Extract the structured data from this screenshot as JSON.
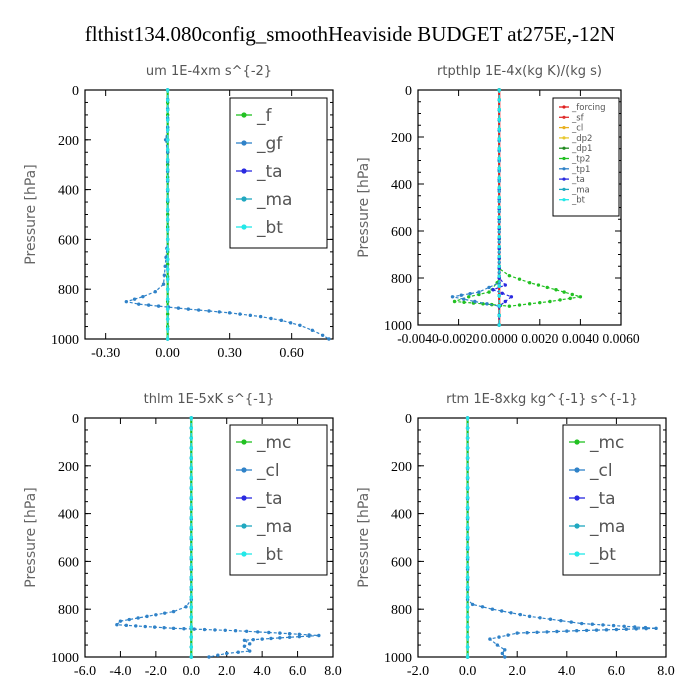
{
  "title": "flthist134.080config_smoothHeaviside  BUDGET at275E,-12N",
  "chart_data": [
    {
      "type": "line",
      "title": "um   1E-4xm s^{-2}",
      "ylabel": "Pressure [hPa]",
      "xlim": [
        -0.4,
        0.8
      ],
      "ylim": [
        1000,
        0
      ],
      "grid": false,
      "x_ticks": [
        "-0.30",
        "0.00",
        "0.30",
        "0.60"
      ],
      "x_tick_values": [
        -0.3,
        0,
        0.3,
        0.6
      ],
      "y_ticks": [
        "0",
        "200",
        "400",
        "600",
        "800",
        "1000"
      ],
      "y_tick_values": [
        0,
        200,
        400,
        600,
        800,
        1000
      ],
      "legend_position": "top-right",
      "series": [
        {
          "name": "_f",
          "color": "#22c122",
          "points": [
            [
              0,
              0
            ],
            [
              0,
              100
            ],
            [
              0,
              200
            ],
            [
              0,
              300
            ],
            [
              0,
              400
            ],
            [
              0,
              500
            ],
            [
              0,
              600
            ],
            [
              0,
              700
            ],
            [
              0,
              800
            ],
            [
              0,
              900
            ],
            [
              0,
              1000
            ]
          ]
        },
        {
          "name": "_gf",
          "color": "#2f82c8",
          "points": [
            [
              0,
              0
            ],
            [
              0,
              150
            ],
            [
              -0.01,
              200
            ],
            [
              0,
              250
            ],
            [
              0,
              600
            ],
            [
              -0.02,
              780
            ],
            [
              -0.06,
              810
            ],
            [
              -0.12,
              830
            ],
            [
              -0.2,
              850
            ],
            [
              -0.14,
              860
            ],
            [
              0.1,
              880
            ],
            [
              0.3,
              895
            ],
            [
              0.45,
              910
            ],
            [
              0.55,
              925
            ],
            [
              0.64,
              945
            ],
            [
              0.7,
              965
            ],
            [
              0.75,
              985
            ],
            [
              0.78,
              1000
            ]
          ]
        },
        {
          "name": "_ta",
          "color": "#2a2ae0",
          "points": [
            [
              0,
              0
            ],
            [
              0,
              800
            ],
            [
              0,
              1000
            ]
          ]
        },
        {
          "name": "_ma",
          "color": "#20a8c0",
          "points": [
            [
              0,
              0
            ],
            [
              0,
              1000
            ]
          ]
        },
        {
          "name": "_bt",
          "color": "#22e8e8",
          "points": [
            [
              0,
              0
            ],
            [
              0,
              1000
            ]
          ]
        }
      ]
    },
    {
      "type": "line",
      "title": "rtpthlp   1E-4x(kg K)/(kg s)",
      "ylabel": "Pressure [hPa]",
      "xlim": [
        -0.004,
        0.006
      ],
      "ylim": [
        1000,
        0
      ],
      "grid": false,
      "x_ticks": [
        "-0.0040",
        "-0.0020",
        "0.0000",
        "0.0020",
        "0.0040",
        "0.0060"
      ],
      "x_tick_values": [
        -0.004,
        -0.002,
        0,
        0.002,
        0.004,
        0.006
      ],
      "y_ticks": [
        "0",
        "200",
        "400",
        "600",
        "800",
        "1000"
      ],
      "y_tick_values": [
        0,
        200,
        400,
        600,
        800,
        1000
      ],
      "legend_position": "top-right",
      "series": [
        {
          "name": "_forcing",
          "color": "#e02020",
          "points": [
            [
              0,
              0
            ],
            [
              0,
              1000
            ]
          ]
        },
        {
          "name": "_sf",
          "color": "#e03030",
          "points": [
            [
              0,
              0
            ],
            [
              0,
              1000
            ]
          ]
        },
        {
          "name": "_cl",
          "color": "#e8b020",
          "points": [
            [
              0,
              0
            ],
            [
              0,
              1000
            ]
          ]
        },
        {
          "name": "_dp2",
          "color": "#e8c830",
          "points": [
            [
              0,
              0
            ],
            [
              0,
              1000
            ]
          ]
        },
        {
          "name": "_dp1",
          "color": "#208a20",
          "points": [
            [
              0,
              0
            ],
            [
              0,
              1000
            ]
          ]
        },
        {
          "name": "_tp2",
          "color": "#22c122",
          "points": [
            [
              0,
              0
            ],
            [
              0,
              760
            ],
            [
              0.0005,
              790
            ],
            [
              0.0015,
              820
            ],
            [
              0.0028,
              850
            ],
            [
              0.004,
              880
            ],
            [
              0.0025,
              900
            ],
            [
              0.0005,
              920
            ],
            [
              -0.0008,
              910
            ],
            [
              -0.0022,
              900
            ],
            [
              -0.0015,
              880
            ],
            [
              -0.0005,
              860
            ],
            [
              -0.0001,
              820
            ],
            [
              0,
              800
            ]
          ]
        },
        {
          "name": "_tp1",
          "color": "#2f82c8",
          "points": [
            [
              0,
              0
            ],
            [
              0,
              820
            ],
            [
              -0.001,
              860
            ],
            [
              -0.0023,
              880
            ],
            [
              -0.0012,
              900
            ],
            [
              0,
              920
            ],
            [
              0,
              1000
            ]
          ]
        },
        {
          "name": "_ta",
          "color": "#2a2ae0",
          "points": [
            [
              0,
              0
            ],
            [
              0,
              800
            ],
            [
              0.0003,
              830
            ],
            [
              -0.0003,
              850
            ],
            [
              0.0006,
              880
            ],
            [
              0.0003,
              900
            ],
            [
              0,
              920
            ],
            [
              0,
              1000
            ]
          ]
        },
        {
          "name": "_ma",
          "color": "#20a8c0",
          "points": [
            [
              0,
              0
            ],
            [
              0,
              1000
            ]
          ]
        },
        {
          "name": "_bt",
          "color": "#22e8e8",
          "points": [
            [
              0,
              0
            ],
            [
              0,
              1000
            ]
          ]
        }
      ]
    },
    {
      "type": "line",
      "title": "thlm   1E-5xK s^{-1}",
      "ylabel": "Pressure [hPa]",
      "xlim": [
        -6.0,
        8.0
      ],
      "ylim": [
        1000,
        0
      ],
      "grid": false,
      "x_ticks": [
        "-6.0",
        "-4.0",
        "-2.0",
        "0.0",
        "2.0",
        "4.0",
        "6.0",
        "8.0"
      ],
      "x_tick_values": [
        -6,
        -4,
        -2,
        0,
        2,
        4,
        6,
        8
      ],
      "y_ticks": [
        "0",
        "200",
        "400",
        "600",
        "800",
        "1000"
      ],
      "y_tick_values": [
        0,
        200,
        400,
        600,
        800,
        1000
      ],
      "legend_position": "top-right",
      "series": [
        {
          "name": "_mc",
          "color": "#22c122",
          "points": [
            [
              0,
              0
            ],
            [
              0,
              1000
            ]
          ]
        },
        {
          "name": "_cl",
          "color": "#2f82c8",
          "points": [
            [
              0,
              0
            ],
            [
              0,
              760
            ],
            [
              -0.3,
              790
            ],
            [
              -1.0,
              810
            ],
            [
              -2.5,
              830
            ],
            [
              -4.0,
              850
            ],
            [
              -4.2,
              865
            ],
            [
              -1.0,
              880
            ],
            [
              2.5,
              890
            ],
            [
              5.0,
              900
            ],
            [
              7.2,
              910
            ],
            [
              5.0,
              920
            ],
            [
              3.0,
              930
            ],
            [
              3.3,
              945
            ],
            [
              3.0,
              955
            ],
            [
              3.3,
              975
            ],
            [
              2.0,
              985
            ],
            [
              1.0,
              1000
            ]
          ]
        },
        {
          "name": "_ta",
          "color": "#2a2ae0",
          "points": [
            [
              0,
              0
            ],
            [
              0,
              1000
            ]
          ]
        },
        {
          "name": "_ma",
          "color": "#20a8c0",
          "points": [
            [
              0,
              0
            ],
            [
              0,
              1000
            ]
          ]
        },
        {
          "name": "_bt",
          "color": "#22e8e8",
          "points": [
            [
              0,
              0
            ],
            [
              0,
              1000
            ]
          ]
        }
      ]
    },
    {
      "type": "line",
      "title": "rtm   1E-8xkg kg^{-1} s^{-1}",
      "ylabel": "Pressure [hPa]",
      "xlim": [
        -2.0,
        8.0
      ],
      "ylim": [
        1000,
        0
      ],
      "grid": false,
      "x_ticks": [
        "-2.0",
        "0.0",
        "2.0",
        "4.0",
        "6.0",
        "8.0"
      ],
      "x_tick_values": [
        -2,
        0,
        2,
        4,
        6,
        8
      ],
      "y_ticks": [
        "0",
        "200",
        "400",
        "600",
        "800",
        "1000"
      ],
      "y_tick_values": [
        0,
        200,
        400,
        600,
        800,
        1000
      ],
      "legend_position": "top-right",
      "series": [
        {
          "name": "_mc",
          "color": "#22c122",
          "points": [
            [
              0,
              0
            ],
            [
              0,
              1000
            ]
          ]
        },
        {
          "name": "_cl",
          "color": "#2f82c8",
          "points": [
            [
              0,
              0
            ],
            [
              0,
              760
            ],
            [
              0.2,
              780
            ],
            [
              1.0,
              800
            ],
            [
              2.5,
              830
            ],
            [
              4.6,
              860
            ],
            [
              7.6,
              880
            ],
            [
              4.4,
              890
            ],
            [
              2.0,
              900
            ],
            [
              0.9,
              925
            ],
            [
              1.2,
              950
            ],
            [
              1.5,
              970
            ],
            [
              1.4,
              985
            ],
            [
              1.5,
              1000
            ]
          ]
        },
        {
          "name": "_ta",
          "color": "#2a2ae0",
          "points": [
            [
              0,
              0
            ],
            [
              0,
              1000
            ]
          ]
        },
        {
          "name": "_ma",
          "color": "#20a8c0",
          "points": [
            [
              0,
              0
            ],
            [
              0,
              1000
            ]
          ]
        },
        {
          "name": "_bt",
          "color": "#22e8e8",
          "points": [
            [
              0,
              0
            ],
            [
              0,
              1000
            ]
          ]
        }
      ]
    }
  ]
}
